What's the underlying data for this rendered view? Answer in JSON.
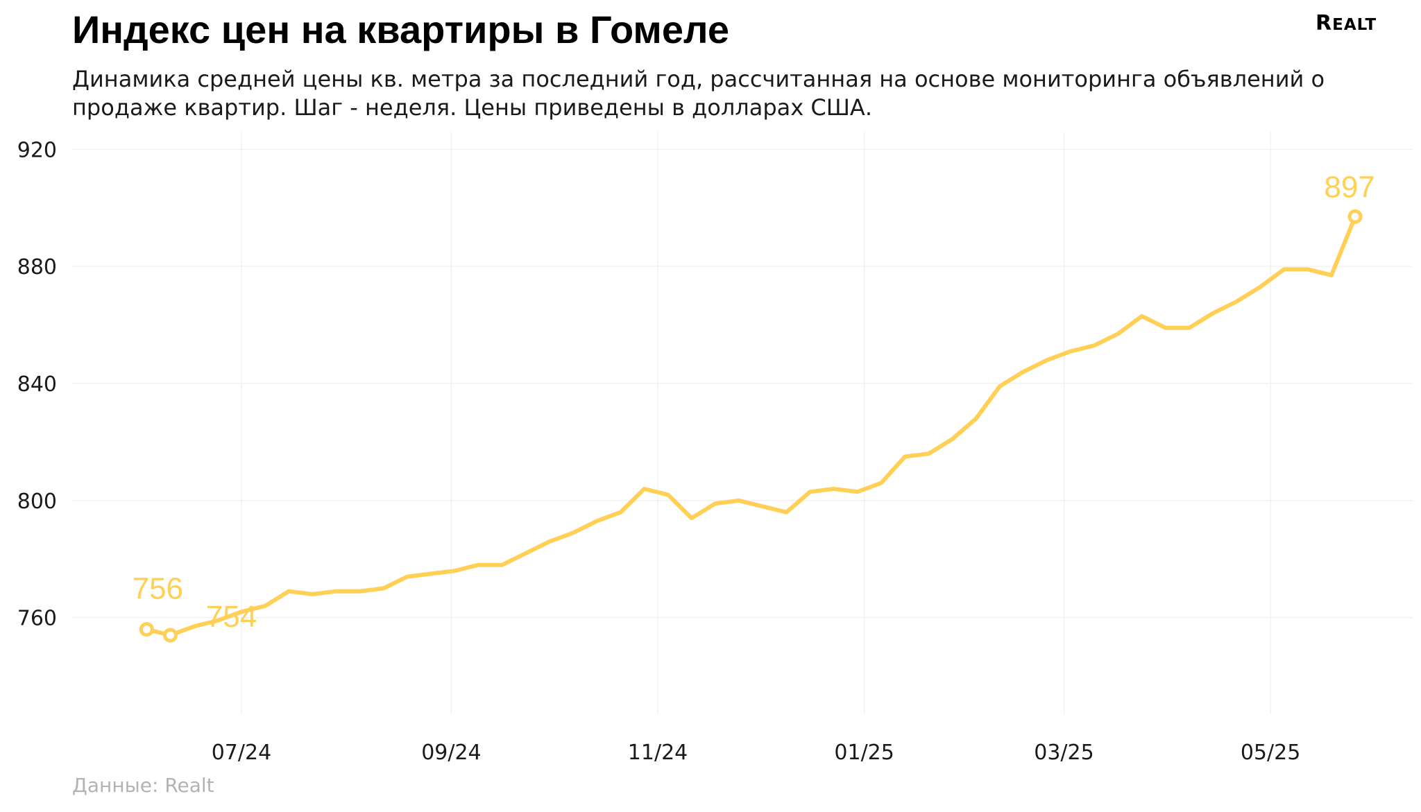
{
  "header": {
    "title": "Индекс цен на квартиры в Гомеле",
    "subtitle": "Динамика средней цены кв. метра за последний год, рассчитанная на основе мониторинга объявлений о продаже квартир. Шаг - неделя. Цены приведены в долларах США.",
    "logo_text": "REALT"
  },
  "footer": {
    "source": "Данные: Realt"
  },
  "colors": {
    "line": "#FFD055",
    "label": "#FFD055",
    "grid": "#EFEFEF",
    "axis_text": "#1A1A1A"
  },
  "chart_data": {
    "type": "line",
    "title": "Индекс цен на квартиры в Гомеле",
    "xlabel": "",
    "ylabel": "",
    "x_tick_labels": [
      "07/24",
      "09/24",
      "11/24",
      "01/25",
      "03/25",
      "05/25"
    ],
    "x_tick_dates": [
      "2024-07-01",
      "2024-09-01",
      "2024-11-01",
      "2025-01-01",
      "2025-03-01",
      "2025-05-01"
    ],
    "y_ticks": [
      760,
      800,
      840,
      880,
      920
    ],
    "ylim": [
      727,
      926
    ],
    "grid": true,
    "legend": "none",
    "series": [
      {
        "x": [
          "2024-06-03",
          "2024-06-10",
          "2024-06-17",
          "2024-06-24",
          "2024-07-01",
          "2024-07-08",
          "2024-07-15",
          "2024-07-22",
          "2024-07-29",
          "2024-08-05",
          "2024-08-12",
          "2024-08-19",
          "2024-08-26",
          "2024-09-02",
          "2024-09-09",
          "2024-09-16",
          "2024-09-23",
          "2024-09-30",
          "2024-10-07",
          "2024-10-14",
          "2024-10-21",
          "2024-10-28",
          "2024-11-04",
          "2024-11-11",
          "2024-11-18",
          "2024-11-25",
          "2024-12-02",
          "2024-12-09",
          "2024-12-16",
          "2024-12-23",
          "2024-12-30",
          "2025-01-06",
          "2025-01-13",
          "2025-01-20",
          "2025-01-27",
          "2025-02-03",
          "2025-02-10",
          "2025-02-17",
          "2025-02-24",
          "2025-03-03",
          "2025-03-10",
          "2025-03-17",
          "2025-03-24",
          "2025-03-31",
          "2025-04-07",
          "2025-04-14",
          "2025-04-21",
          "2025-04-28",
          "2025-05-05",
          "2025-05-12",
          "2025-05-19",
          "2025-05-26"
        ],
        "values": [
          756,
          754,
          757,
          759,
          762,
          764,
          769,
          768,
          769,
          769,
          770,
          774,
          775,
          776,
          778,
          778,
          782,
          786,
          789,
          793,
          796,
          804,
          802,
          794,
          799,
          800,
          798,
          796,
          803,
          804,
          803,
          806,
          815,
          816,
          821,
          828,
          839,
          844,
          848,
          851,
          853,
          857,
          863,
          859,
          859,
          864,
          868,
          873,
          879,
          879,
          877,
          897
        ]
      }
    ],
    "annotations": [
      {
        "x": "2024-06-03",
        "value": 756,
        "label": "756"
      },
      {
        "x": "2024-06-10",
        "value": 754,
        "label": "754"
      },
      {
        "x": "2025-05-26",
        "value": 897,
        "label": "897"
      }
    ]
  }
}
